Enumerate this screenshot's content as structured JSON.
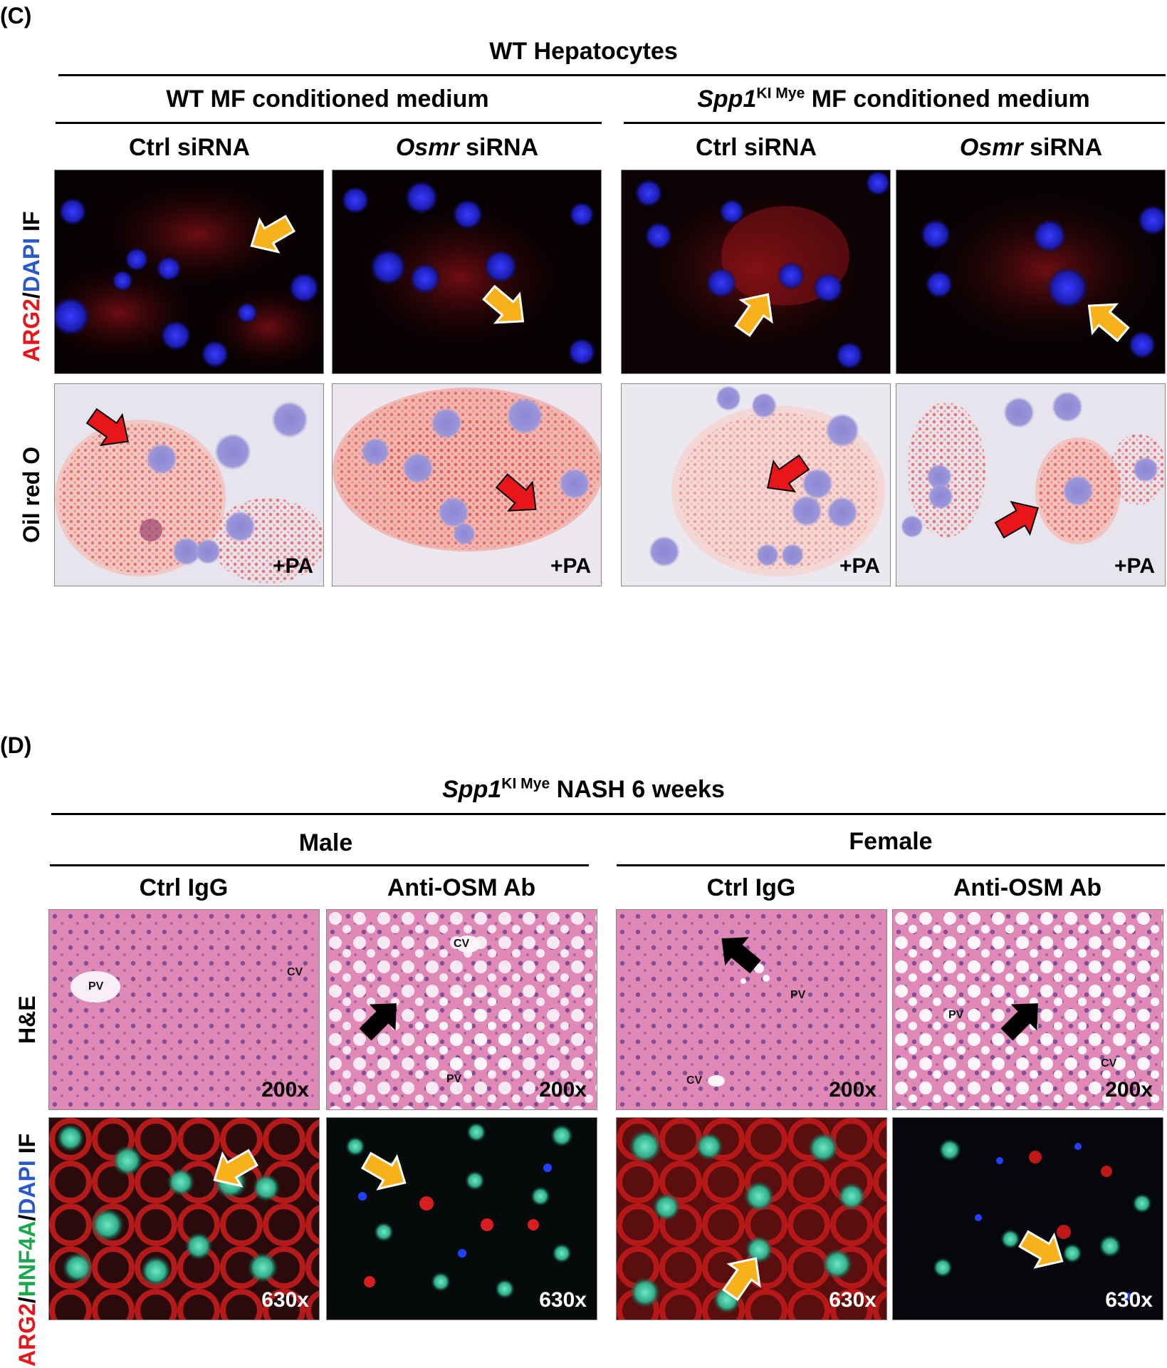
{
  "panel_c": {
    "label": "(C)",
    "title": "WT Hepatocytes",
    "groups": [
      {
        "name_italic": "",
        "name_sup": "",
        "name_rest": "WT MF conditioned medium"
      },
      {
        "name_italic": "Spp1",
        "name_sup": "KI Mye",
        "name_rest": " MF conditioned medium"
      }
    ],
    "columns": [
      {
        "italic": "",
        "rest": "Ctrl siRNA"
      },
      {
        "italic": "Osmr",
        "rest": " siRNA"
      },
      {
        "italic": "",
        "rest": "Ctrl siRNA"
      },
      {
        "italic": "Osmr",
        "rest": " siRNA"
      }
    ],
    "row_labels": {
      "if": {
        "p1": "ARG2",
        "p2": "/",
        "p3": "DAPI",
        "p4": " IF"
      },
      "oil": "Oil red O"
    },
    "pa_label": "+PA"
  },
  "panel_d": {
    "label": "(D)",
    "title_italic": "Spp1",
    "title_sup": "KI Mye",
    "title_rest": " NASH 6 weeks",
    "groups": [
      "Male",
      "Female"
    ],
    "columns": [
      "Ctrl IgG",
      "Anti-OSM Ab",
      "Ctrl IgG",
      "Anti-OSM Ab"
    ],
    "row_labels": {
      "he": "H&E",
      "if": {
        "p1": "ARG2",
        "p2": "/",
        "p3": "HNF4A",
        "p4": "/",
        "p5": "DAPI",
        "p6": " IF"
      }
    },
    "mag_he": "200x",
    "mag_if": "630x",
    "he_tags": {
      "t1": [
        "PV",
        "CV"
      ],
      "t2": [
        "CV",
        "PV"
      ],
      "t3": [
        "PV",
        "CV"
      ],
      "t4": [
        "PV",
        "CV"
      ]
    }
  },
  "colors": {
    "arrow_yellow": "#f7b21b",
    "arrow_red": "#e8161b",
    "arrow_black": "#000000",
    "label_red": "#e8161b",
    "label_blue": "#2a58c8",
    "label_green": "#1aa84a"
  }
}
